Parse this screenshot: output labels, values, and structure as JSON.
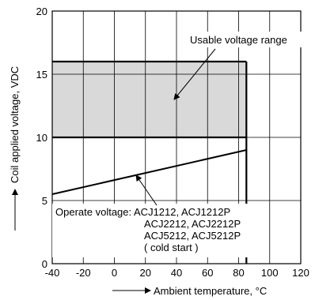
{
  "chart_data": {
    "type": "line",
    "xlabel": "Ambient temperature, °C",
    "ylabel": "Coil applied voltage, VDC",
    "xlim": [
      -40,
      120
    ],
    "ylim": [
      0,
      20
    ],
    "x_ticks": [
      "-40",
      "-20",
      "0",
      "20",
      "40",
      "60",
      "80",
      "100",
      "120"
    ],
    "y_ticks": [
      "0",
      "5",
      "10",
      "15",
      "20"
    ],
    "grid": true,
    "usable_range": {
      "label": "Usable voltage range",
      "x": [
        -40,
        85
      ],
      "y": [
        10,
        16
      ],
      "fill": "#d9d9d9"
    },
    "series": [
      {
        "x": [
          -40,
          85
        ],
        "y": [
          5.5,
          9.0
        ]
      }
    ],
    "operate_annotation": {
      "lines": [
        "Operate voltage: ACJ1212, ACJ1212P",
        "ACJ2212, ACJ2212P",
        "ACJ5212, ACJ5212P",
        "( cold start )"
      ]
    }
  }
}
